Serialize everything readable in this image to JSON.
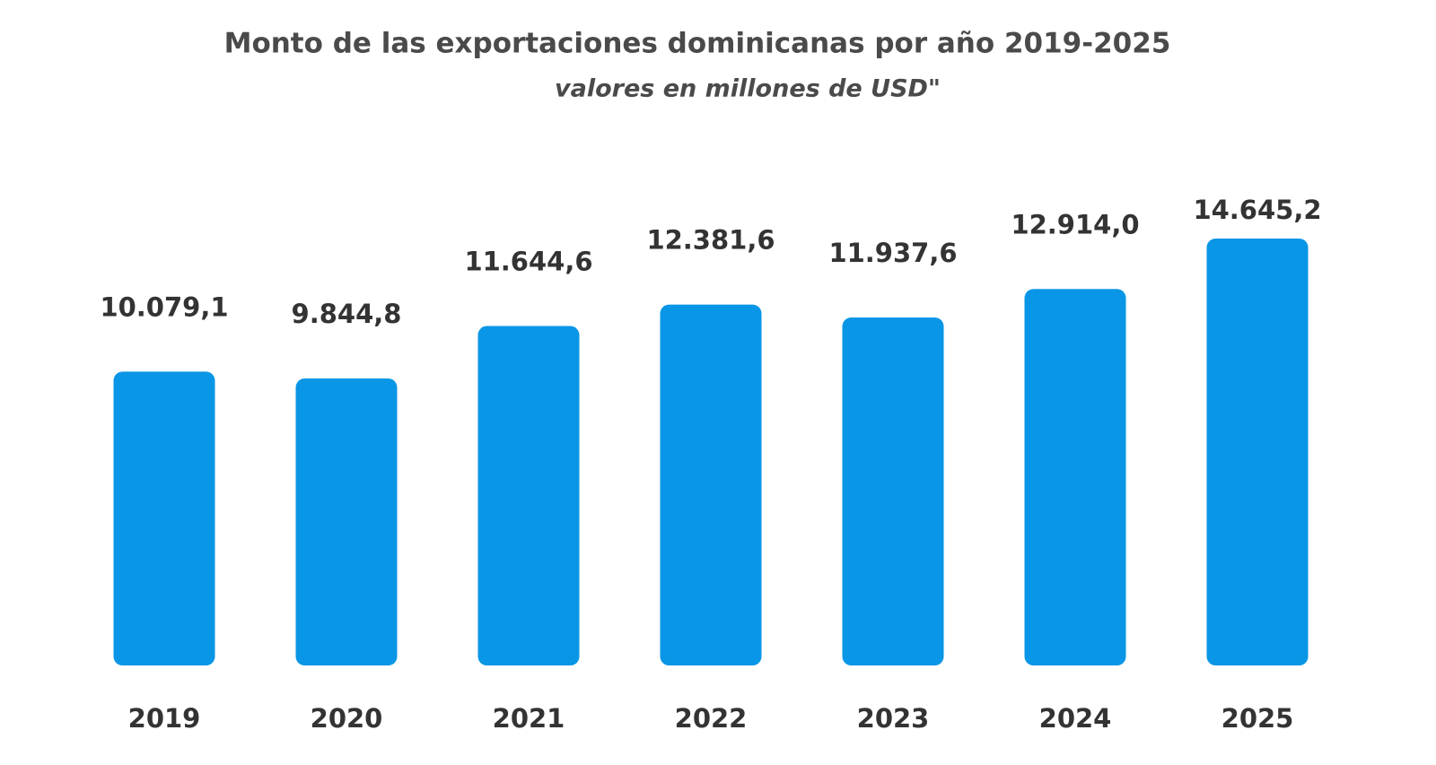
{
  "chart_data": {
    "type": "bar",
    "title": "Monto de las exportaciones dominicanas por año 2019-2025",
    "subtitle": "valores en millones de USD\"",
    "categories": [
      "2019",
      "2020",
      "2021",
      "2022",
      "2023",
      "2024",
      "2025"
    ],
    "values": [
      10079.1,
      9844.8,
      11644.6,
      12381.6,
      11937.6,
      12914.0,
      14645.2
    ],
    "value_labels": [
      "10.079,1",
      "9.844,8",
      "11.644,6",
      "12.381,6",
      "11.937,6",
      "12.914,0",
      "14.645,2"
    ],
    "color": "#0a96e6"
  }
}
